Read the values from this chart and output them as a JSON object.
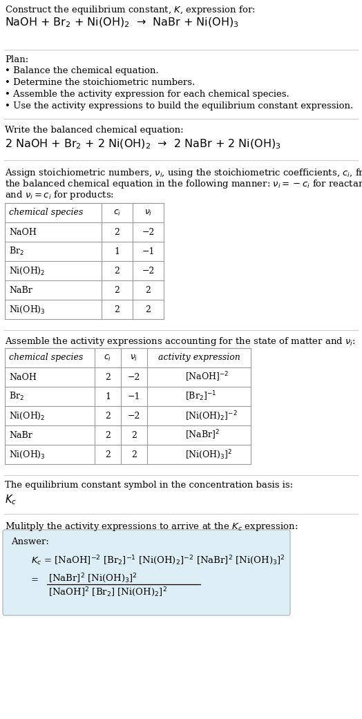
{
  "bg_color": "#ffffff",
  "text_color": "#000000",
  "table_line_color": "#999999",
  "section_bg": "#ddeef6",
  "title_line1": "Construct the equilibrium constant, $K$, expression for:",
  "title_line2": "NaOH + Br$_2$ + Ni(OH)$_2$  →  NaBr + Ni(OH)$_3$",
  "plan_header": "Plan:",
  "plan_bullets": [
    "• Balance the chemical equation.",
    "• Determine the stoichiometric numbers.",
    "• Assemble the activity expression for each chemical species.",
    "• Use the activity expressions to build the equilibrium constant expression."
  ],
  "balanced_header": "Write the balanced chemical equation:",
  "balanced_eq": "2 NaOH + Br$_2$ + 2 Ni(OH)$_2$  →  2 NaBr + 2 Ni(OH)$_3$",
  "stoich_header_lines": [
    "Assign stoichiometric numbers, $\\nu_i$, using the stoichiometric coefficients, $c_i$, from",
    "the balanced chemical equation in the following manner: $\\nu_i = -c_i$ for reactants",
    "and $\\nu_i = c_i$ for products:"
  ],
  "table1_cols": [
    "chemical species",
    "$c_i$",
    "$\\nu_i$"
  ],
  "table1_rows": [
    [
      "NaOH",
      "2",
      "−2"
    ],
    [
      "Br$_2$",
      "1",
      "−1"
    ],
    [
      "Ni(OH)$_2$",
      "2",
      "−2"
    ],
    [
      "NaBr",
      "2",
      "2"
    ],
    [
      "Ni(OH)$_3$",
      "2",
      "2"
    ]
  ],
  "activity_header": "Assemble the activity expressions accounting for the state of matter and $\\nu_i$:",
  "table2_cols": [
    "chemical species",
    "$c_i$",
    "$\\nu_i$",
    "activity expression"
  ],
  "table2_rows": [
    [
      "NaOH",
      "2",
      "−2",
      "[NaOH]$^{-2}$"
    ],
    [
      "Br$_2$",
      "1",
      "−1",
      "[Br$_2$]$^{-1}$"
    ],
    [
      "Ni(OH)$_2$",
      "2",
      "−2",
      "[Ni(OH)$_2$]$^{-2}$"
    ],
    [
      "NaBr",
      "2",
      "2",
      "[NaBr]$^2$"
    ],
    [
      "Ni(OH)$_3$",
      "2",
      "2",
      "[Ni(OH)$_3$]$^2$"
    ]
  ],
  "kc_header": "The equilibrium constant symbol in the concentration basis is:",
  "kc_symbol": "$K_c$",
  "multiply_header": "Mulitply the activity expressions to arrive at the $K_c$ expression:",
  "answer_label": "Answer:",
  "answer_line1": "$K_c$ = [NaOH]$^{-2}$ [Br$_2$]$^{-1}$ [Ni(OH)$_2$]$^{-2}$ [NaBr]$^2$ [Ni(OH)$_3$]$^2$",
  "answer_eq_sign": "=",
  "answer_numerator": "[NaBr]$^2$ [Ni(OH)$_3$]$^2$",
  "answer_denominator": "[NaOH]$^2$ [Br$_2$] [Ni(OH)$_2$]$^2$",
  "font_size": 9.5,
  "font_size_table": 9.0
}
